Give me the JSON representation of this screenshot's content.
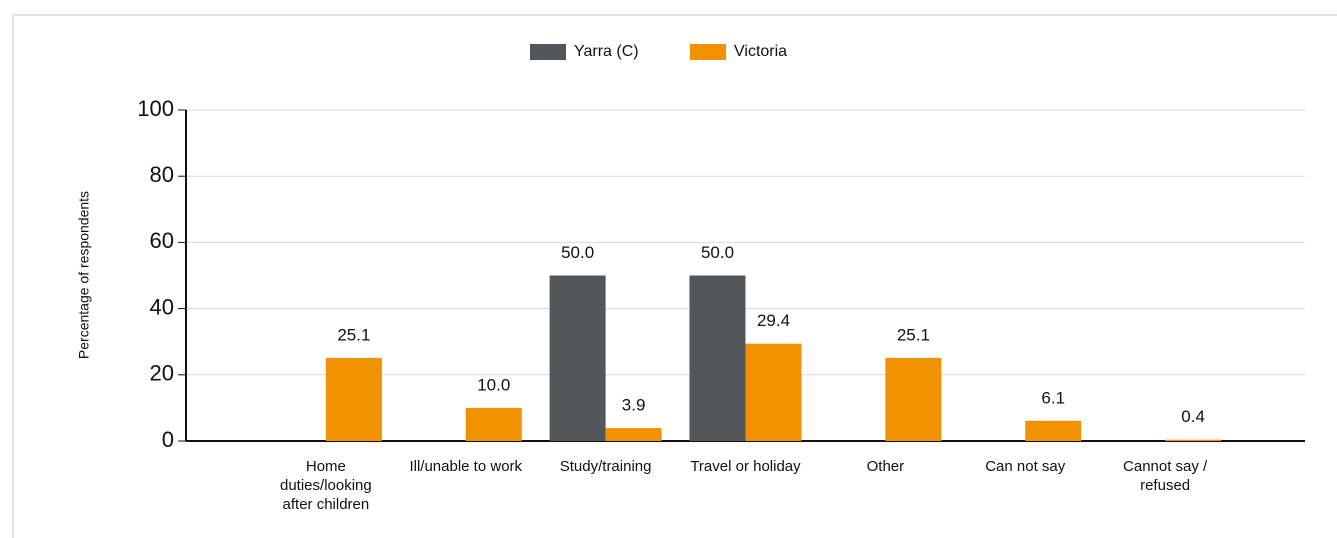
{
  "chart_data": {
    "type": "bar",
    "y_label": "Percentage of respondents",
    "categories": [
      "Home duties/looking after children",
      "Ill/unable to work",
      "Study/training",
      "Travel or holiday",
      "Other",
      "Can not say",
      "Cannot say / refused"
    ],
    "series": [
      {
        "name": "Yarra (C)",
        "color": "#54575a",
        "values": [
          null,
          null,
          50,
          50,
          null,
          null,
          null
        ],
        "value_labels": [
          null,
          null,
          "50.0",
          "50.0",
          null,
          null,
          null
        ]
      },
      {
        "name": "Victoria",
        "color": "#f39200",
        "values": [
          25.1,
          10,
          3.9,
          29.4,
          25.1,
          6.1,
          0.4
        ],
        "value_labels": [
          "25.1",
          "10.0",
          "3.9",
          "29.4",
          "25.1",
          "6.1",
          "0.4"
        ]
      }
    ],
    "ylim": [
      0,
      100
    ],
    "yticks": [
      0,
      20,
      40,
      60,
      80,
      100
    ],
    "grid": true
  }
}
